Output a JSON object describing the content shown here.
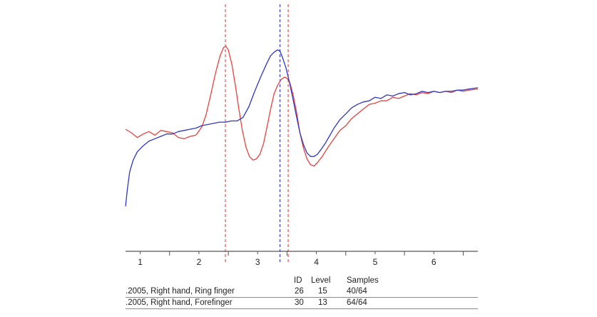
{
  "chart_data": {
    "type": "line",
    "xlim": [
      0.75,
      6.75
    ],
    "ylim": [
      -1.0,
      1.0
    ],
    "ticks": [
      1,
      2,
      3,
      4,
      5,
      6
    ],
    "grid": false,
    "series": [
      {
        "name": ".2005, Right hand, Ring finger",
        "color": "#e8413c",
        "marker_x": [
          2.45,
          3.52
        ],
        "x": [
          0.75,
          0.85,
          0.95,
          1.05,
          1.15,
          1.25,
          1.35,
          1.45,
          1.55,
          1.65,
          1.75,
          1.85,
          1.95,
          2.05,
          2.12,
          2.2,
          2.28,
          2.36,
          2.42,
          2.46,
          2.5,
          2.56,
          2.62,
          2.68,
          2.74,
          2.8,
          2.86,
          2.92,
          2.98,
          3.04,
          3.1,
          3.16,
          3.22,
          3.28,
          3.34,
          3.4,
          3.46,
          3.5,
          3.55,
          3.6,
          3.66,
          3.72,
          3.78,
          3.84,
          3.9,
          3.96,
          4.02,
          4.1,
          4.2,
          4.3,
          4.4,
          4.5,
          4.6,
          4.7,
          4.8,
          4.9,
          5.0,
          5.1,
          5.2,
          5.3,
          5.4,
          5.5,
          5.6,
          5.7,
          5.8,
          5.9,
          6.0,
          6.1,
          6.2,
          6.3,
          6.4,
          6.5,
          6.6,
          6.75
        ],
        "y": [
          0.03,
          0.0,
          -0.04,
          -0.01,
          0.01,
          -0.02,
          0.02,
          0.01,
          0.0,
          -0.04,
          -0.05,
          -0.03,
          -0.02,
          0.05,
          0.15,
          0.32,
          0.5,
          0.65,
          0.72,
          0.73,
          0.7,
          0.58,
          0.4,
          0.2,
          0.02,
          -0.12,
          -0.2,
          -0.23,
          -0.22,
          -0.18,
          -0.09,
          0.05,
          0.2,
          0.33,
          0.4,
          0.45,
          0.47,
          0.46,
          0.42,
          0.33,
          0.18,
          0.0,
          -0.13,
          -0.22,
          -0.27,
          -0.28,
          -0.25,
          -0.2,
          -0.12,
          -0.05,
          0.02,
          0.06,
          0.12,
          0.16,
          0.2,
          0.24,
          0.25,
          0.27,
          0.27,
          0.3,
          0.29,
          0.31,
          0.33,
          0.32,
          0.34,
          0.33,
          0.35,
          0.34,
          0.35,
          0.34,
          0.36,
          0.35,
          0.36,
          0.37
        ]
      },
      {
        "name": ".2005, Right hand, Forefinger",
        "color": "#2f37c4",
        "marker_x": [
          3.38
        ],
        "x": [
          0.75,
          0.78,
          0.82,
          0.88,
          0.95,
          1.05,
          1.15,
          1.25,
          1.35,
          1.45,
          1.55,
          1.65,
          1.75,
          1.85,
          1.95,
          2.05,
          2.15,
          2.25,
          2.35,
          2.45,
          2.55,
          2.65,
          2.75,
          2.85,
          2.95,
          3.05,
          3.15,
          3.22,
          3.28,
          3.34,
          3.38,
          3.42,
          3.48,
          3.54,
          3.6,
          3.66,
          3.72,
          3.78,
          3.84,
          3.9,
          3.96,
          4.02,
          4.08,
          4.15,
          4.22,
          4.3,
          4.4,
          4.5,
          4.6,
          4.7,
          4.8,
          4.9,
          5.0,
          5.1,
          5.2,
          5.3,
          5.4,
          5.5,
          5.6,
          5.7,
          5.8,
          5.9,
          6.0,
          6.1,
          6.2,
          6.3,
          6.4,
          6.5,
          6.6,
          6.75
        ],
        "y": [
          -0.62,
          -0.48,
          -0.33,
          -0.23,
          -0.16,
          -0.11,
          -0.07,
          -0.05,
          -0.03,
          -0.01,
          -0.01,
          0.01,
          0.02,
          0.03,
          0.04,
          0.06,
          0.07,
          0.08,
          0.09,
          0.09,
          0.1,
          0.1,
          0.13,
          0.22,
          0.35,
          0.47,
          0.58,
          0.65,
          0.68,
          0.7,
          0.69,
          0.64,
          0.55,
          0.43,
          0.29,
          0.14,
          0.0,
          -0.1,
          -0.17,
          -0.2,
          -0.2,
          -0.18,
          -0.14,
          -0.09,
          -0.03,
          0.04,
          0.11,
          0.16,
          0.21,
          0.24,
          0.26,
          0.27,
          0.3,
          0.29,
          0.32,
          0.31,
          0.33,
          0.34,
          0.32,
          0.33,
          0.35,
          0.34,
          0.35,
          0.34,
          0.35,
          0.35,
          0.36,
          0.36,
          0.37,
          0.38
        ]
      }
    ]
  },
  "legend": {
    "headers": {
      "id": "ID",
      "level": "Level",
      "samples": "Samples"
    },
    "rows": [
      {
        "name": ".2005, Right hand, Ring finger",
        "id": "26",
        "level": "15",
        "samples": "40/64"
      },
      {
        "name": ".2005, Right hand, Forefinger",
        "id": "30",
        "level": "13",
        "samples": "64/64"
      }
    ]
  }
}
